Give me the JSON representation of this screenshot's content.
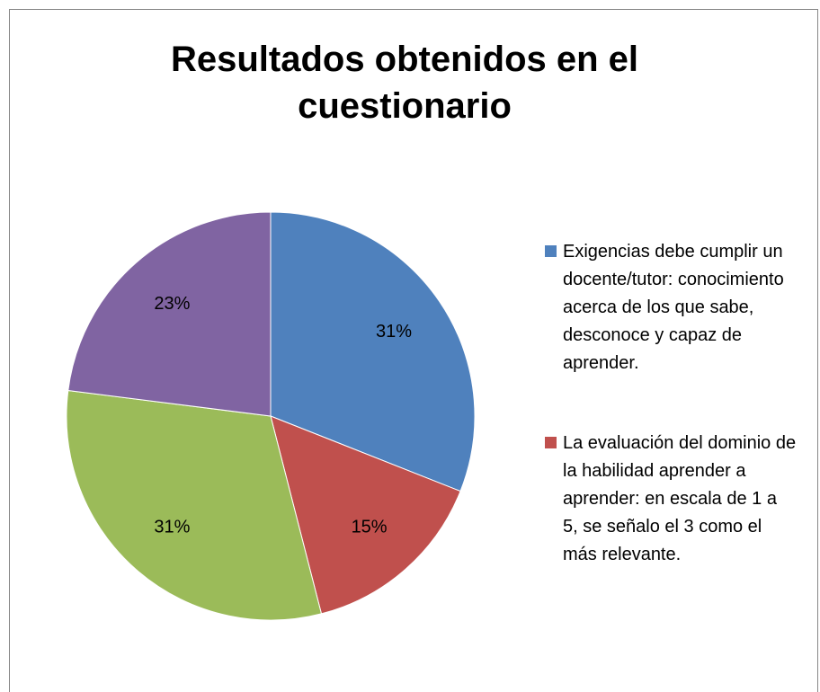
{
  "chart_data": {
    "type": "pie",
    "title": "Resultados obtenidos en el cuestionario",
    "categories": [
      "Exigencias debe cumplir un docente/tutor: conocimiento acerca de los que sabe, desconoce y capaz de aprender.",
      "La evaluación del dominio de la habilidad aprender a aprender: en escala de 1 a 5, se señalo el 3 como el más relevante.",
      null,
      null
    ],
    "values": [
      31,
      15,
      31,
      23
    ],
    "value_labels": [
      "31%",
      "15%",
      "31%",
      "23%"
    ],
    "colors": [
      "#4f81bd",
      "#c0504d",
      "#9bbb59",
      "#8064a2"
    ],
    "legend": "right"
  }
}
